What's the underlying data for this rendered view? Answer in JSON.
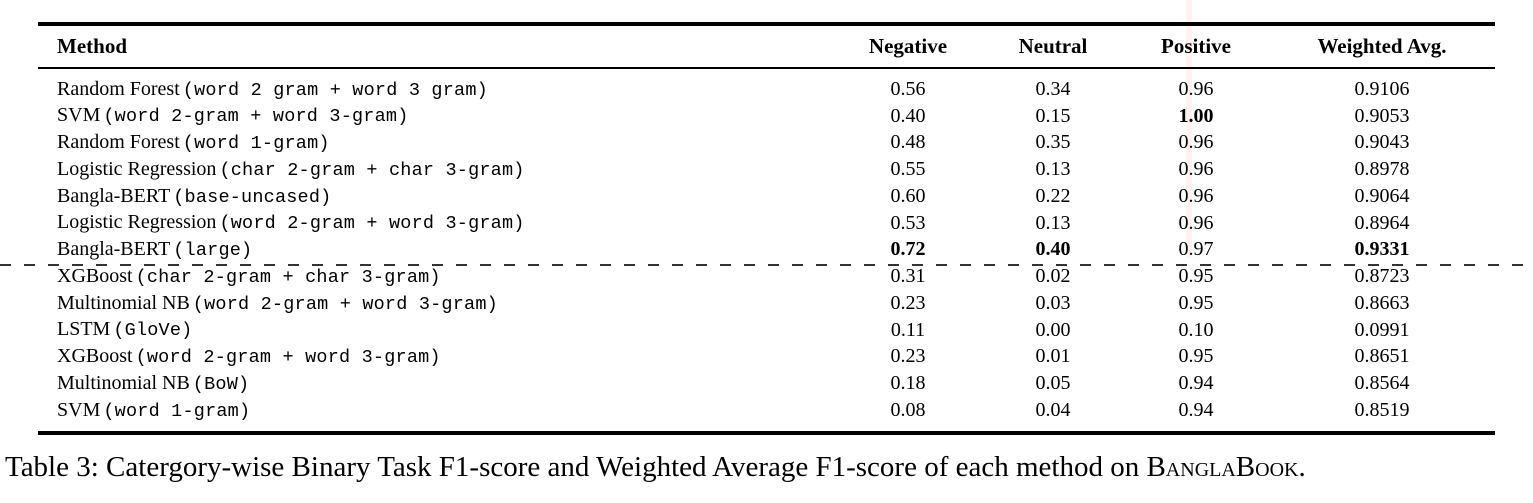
{
  "table": {
    "columns": [
      "Method",
      "Negative",
      "Neutral",
      "Positive",
      "Weighted Avg."
    ],
    "rows": [
      {
        "method": "Random Forest",
        "config": "word 2 gram + word 3 gram",
        "negative": "0.56",
        "neutral": "0.34",
        "positive": "0.96",
        "weighted": "0.9106",
        "bold": []
      },
      {
        "method": "SVM",
        "config": "word 2-gram + word 3-gram",
        "negative": "0.40",
        "neutral": "0.15",
        "positive": "1.00",
        "weighted": "0.9053",
        "bold": [
          "positive"
        ]
      },
      {
        "method": "Random Forest",
        "config": "word 1-gram",
        "negative": "0.48",
        "neutral": "0.35",
        "positive": "0.96",
        "weighted": "0.9043",
        "bold": []
      },
      {
        "method": "Logistic Regression",
        "config": "char 2-gram + char 3-gram",
        "negative": "0.55",
        "neutral": "0.13",
        "positive": "0.96",
        "weighted": "0.8978",
        "bold": []
      },
      {
        "method": "Bangla-BERT",
        "config": "base-uncased",
        "negative": "0.60",
        "neutral": "0.22",
        "positive": "0.96",
        "weighted": "0.9064",
        "bold": []
      },
      {
        "method": "Logistic Regression",
        "config": "word 2-gram + word 3-gram",
        "negative": "0.53",
        "neutral": "0.13",
        "positive": "0.96",
        "weighted": "0.8964",
        "bold": []
      },
      {
        "method": "Bangla-BERT",
        "config": "large",
        "negative": "0.72",
        "neutral": "0.40",
        "positive": "0.97",
        "weighted": "0.9331",
        "bold": [
          "negative",
          "neutral",
          "weighted"
        ]
      },
      {
        "method": "XGBoost",
        "config": "char 2-gram + char 3-gram",
        "negative": "0.31",
        "neutral": "0.02",
        "positive": "0.95",
        "weighted": "0.8723",
        "bold": []
      },
      {
        "method": "Multinomial NB",
        "config": "word 2-gram + word 3-gram",
        "negative": "0.23",
        "neutral": "0.03",
        "positive": "0.95",
        "weighted": "0.8663",
        "bold": []
      },
      {
        "method": "LSTM",
        "config": "GloVe",
        "negative": "0.11",
        "neutral": "0.00",
        "positive": "0.10",
        "weighted": "0.0991",
        "bold": []
      },
      {
        "method": "XGBoost",
        "config": "word 2-gram + word 3-gram",
        "negative": "0.23",
        "neutral": "0.01",
        "positive": "0.95",
        "weighted": "0.8651",
        "bold": []
      },
      {
        "method": "Multinomial NB",
        "config": "BoW",
        "negative": "0.18",
        "neutral": "0.05",
        "positive": "0.94",
        "weighted": "0.8564",
        "bold": []
      },
      {
        "method": "SVM",
        "config": "word 1-gram",
        "negative": "0.08",
        "neutral": "0.04",
        "positive": "0.94",
        "weighted": "0.8519",
        "bold": []
      }
    ]
  },
  "caption": {
    "prefix": "Table 3: Catergory-wise Binary Task F1-score and Weighted Average F1-score of each method on ",
    "dataset": "BanglaBook",
    "suffix": "."
  }
}
